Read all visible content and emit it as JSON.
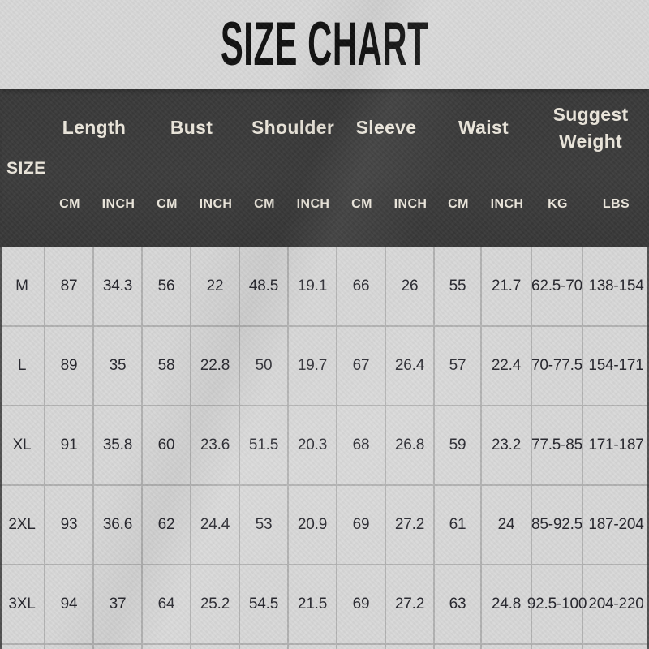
{
  "title": "SIZE CHART",
  "colors": {
    "background": "#d8d8d8",
    "header_background": "#3a3a3a",
    "header_text": "#ece7dc",
    "title_text": "#101010",
    "body_text": "#26262d",
    "grid_line": "#b3b3b3"
  },
  "table": {
    "size_header": "SIZE",
    "groups": [
      {
        "label": "Length",
        "subs": [
          "CM",
          "INCH"
        ]
      },
      {
        "label": "Bust",
        "subs": [
          "CM",
          "INCH"
        ]
      },
      {
        "label": "Shoulder",
        "subs": [
          "CM",
          "INCH"
        ]
      },
      {
        "label": "Sleeve",
        "subs": [
          "CM",
          "INCH"
        ]
      },
      {
        "label": "Waist",
        "subs": [
          "CM",
          "INCH"
        ]
      },
      {
        "label": "Suggest Weight",
        "subs": [
          "KG",
          "LBS"
        ]
      }
    ],
    "rows": [
      {
        "size": "M",
        "values": [
          "87",
          "34.3",
          "56",
          "22",
          "48.5",
          "19.1",
          "66",
          "26",
          "55",
          "21.7",
          "62.5-70",
          "138-154"
        ]
      },
      {
        "size": "L",
        "values": [
          "89",
          "35",
          "58",
          "22.8",
          "50",
          "19.7",
          "67",
          "26.4",
          "57",
          "22.4",
          "70-77.5",
          "154-171"
        ]
      },
      {
        "size": "XL",
        "values": [
          "91",
          "35.8",
          "60",
          "23.6",
          "51.5",
          "20.3",
          "68",
          "26.8",
          "59",
          "23.2",
          "77.5-85",
          "171-187"
        ]
      },
      {
        "size": "2XL",
        "values": [
          "93",
          "36.6",
          "62",
          "24.4",
          "53",
          "20.9",
          "69",
          "27.2",
          "61",
          "24",
          "85-92.5",
          "187-204"
        ]
      },
      {
        "size": "3XL",
        "values": [
          "94",
          "37",
          "64",
          "25.2",
          "54.5",
          "21.5",
          "69",
          "27.2",
          "63",
          "24.8",
          "92.5-100",
          "204-220"
        ]
      }
    ]
  }
}
